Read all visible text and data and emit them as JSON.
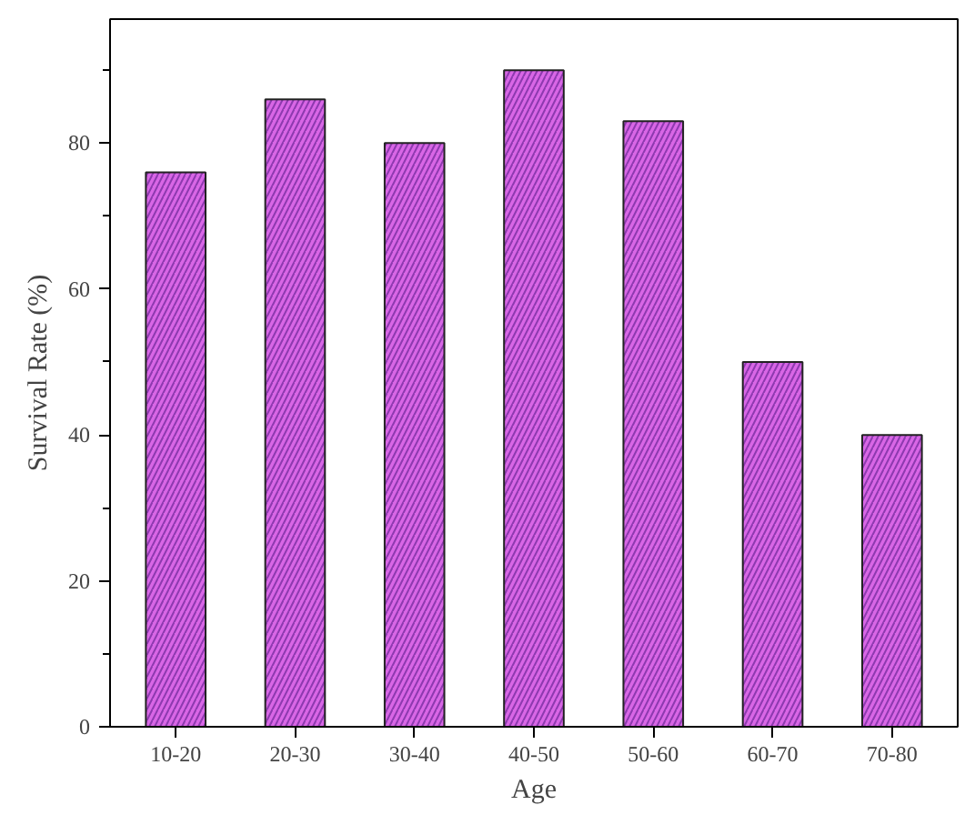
{
  "chart_data": {
    "type": "bar",
    "xlabel": "Age",
    "ylabel": "Survival Rate (%)",
    "categories": [
      "10-20",
      "20-30",
      "30-40",
      "40-50",
      "50-60",
      "60-70",
      "70-80"
    ],
    "values": [
      76,
      86,
      80,
      90,
      83,
      50,
      40
    ],
    "color": "#d966e6",
    "ylim": [
      0,
      97
    ],
    "yticks": [
      0,
      20,
      40,
      60,
      80
    ],
    "grid": false
  }
}
